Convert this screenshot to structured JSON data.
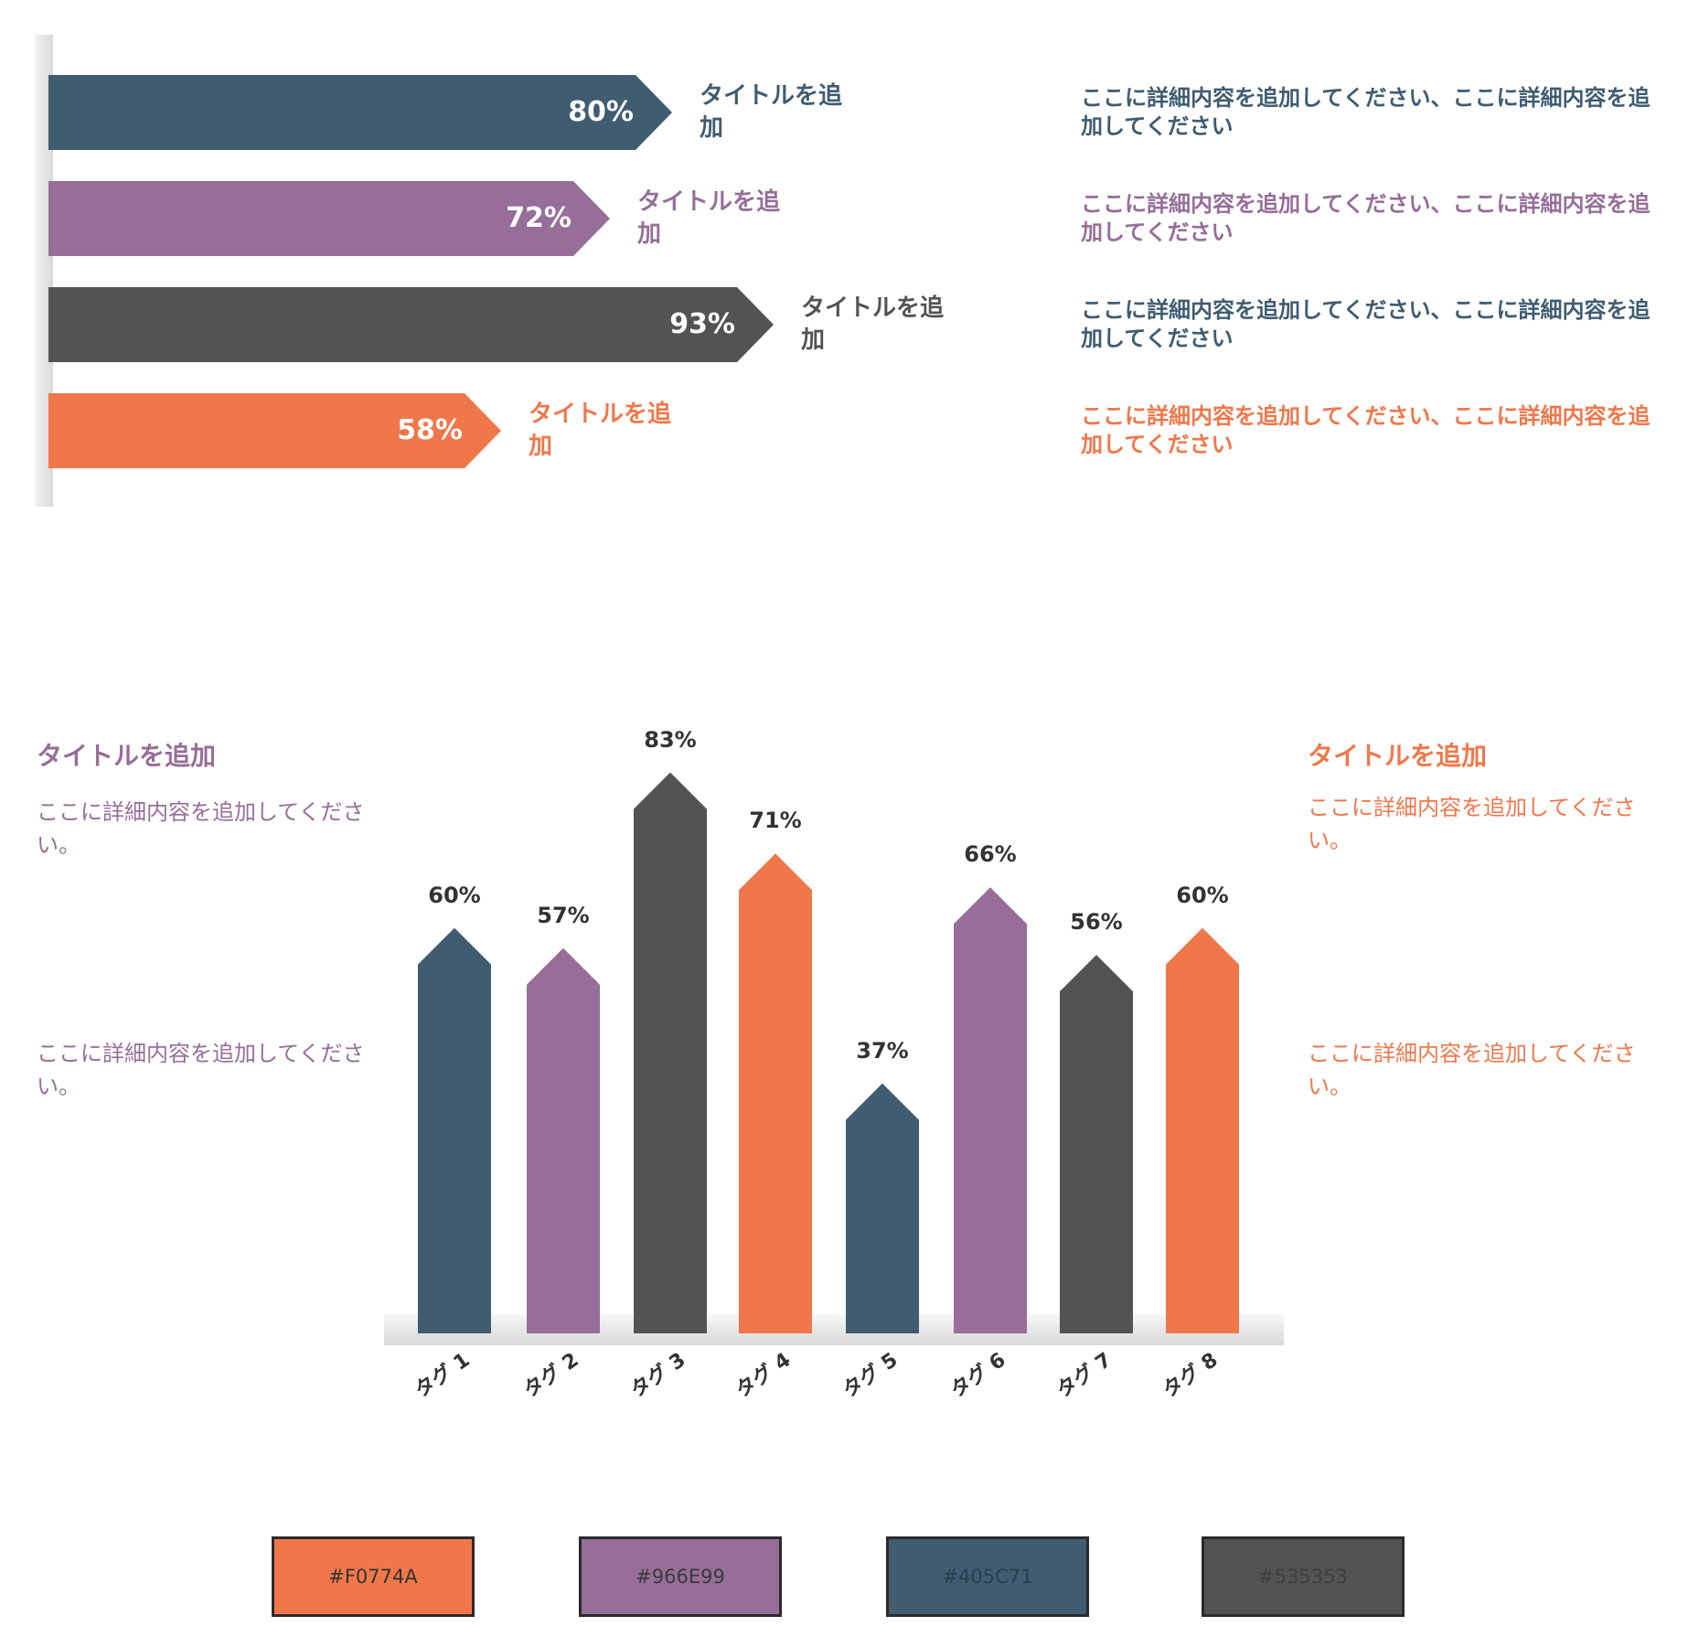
{
  "colors": {
    "orange": "#F0774A",
    "purple": "#966E99",
    "navy": "#405C71",
    "gray": "#535353"
  },
  "hbars": [
    {
      "value_label": "80%",
      "title": "タイトルを追加",
      "description": "ここに詳細内容を追加してください、ここに詳細内容を追加してください",
      "color": "#405C71"
    },
    {
      "value_label": "72%",
      "title": "タイトルを追加",
      "description": "ここに詳細内容を追加してください、ここに詳細内容を追加してください",
      "color": "#966E99"
    },
    {
      "value_label": "93%",
      "title": "タイトルを追加",
      "description": "ここに詳細内容を追加してください、ここに詳細内容を追加してください",
      "color": "#535353"
    },
    {
      "value_label": "58%",
      "title": "タイトルを追加",
      "description": "ここに詳細内容を追加してください、ここに詳細内容を追加してください",
      "color": "#F0774A"
    }
  ],
  "left_panel": {
    "title": "タイトルを追加",
    "text1": "ここに詳細内容を追加してください。",
    "text2": "ここに詳細内容を追加してください。",
    "color": "#966E99"
  },
  "right_panel": {
    "title": "タイトルを追加",
    "text1": "ここに詳細内容を追加してください。",
    "text2": "ここに詳細内容を追加してください。",
    "color": "#F0774A"
  },
  "chart_data": [
    {
      "type": "bar",
      "orientation": "horizontal",
      "categories": [
        "タイトルを追加",
        "タイトルを追加",
        "タイトルを追加",
        "タイトルを追加"
      ],
      "values": [
        80,
        72,
        93,
        58
      ],
      "data_labels": [
        "80%",
        "72%",
        "93%",
        "58%"
      ],
      "colors": [
        "#405C71",
        "#966E99",
        "#535353",
        "#F0774A"
      ],
      "xlim": [
        0,
        100
      ],
      "legend": "none",
      "grid": false
    },
    {
      "type": "bar",
      "orientation": "vertical",
      "categories": [
        "タグ 1",
        "タグ 2",
        "タグ 3",
        "タグ 4",
        "タグ 5",
        "タグ 6",
        "タグ 7",
        "タグ 8"
      ],
      "values": [
        60,
        57,
        83,
        71,
        37,
        66,
        56,
        60
      ],
      "data_labels": [
        "60%",
        "57%",
        "83%",
        "71%",
        "37%",
        "66%",
        "56%",
        "60%"
      ],
      "colors": [
        "#405C71",
        "#966E99",
        "#535353",
        "#F0774A",
        "#405C71",
        "#966E99",
        "#535353",
        "#F0774A"
      ],
      "ylim": [
        0,
        100
      ],
      "legend": "none",
      "grid": false
    }
  ],
  "swatches": [
    {
      "label": "#F0774A",
      "color": "#F0774A"
    },
    {
      "label": "#966E99",
      "color": "#966E99"
    },
    {
      "label": "#405C71",
      "color": "#405C71"
    },
    {
      "label": "#535353",
      "color": "#535353"
    }
  ]
}
